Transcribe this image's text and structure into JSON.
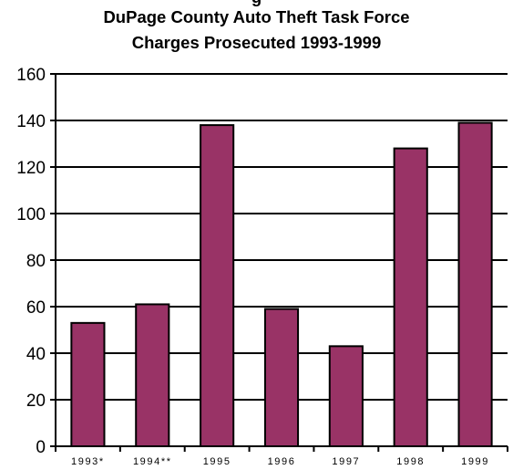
{
  "chart_data": {
    "type": "bar",
    "title_lines": [
      "g",
      "DuPage County Auto Theft Task Force",
      "Charges Prosecuted 1993-1999"
    ],
    "categories": [
      "1993*",
      "1994**",
      "1995",
      "1996",
      "1997",
      "1998",
      "1999"
    ],
    "values": [
      53,
      61,
      138,
      59,
      43,
      128,
      139
    ],
    "xlabel": "",
    "ylabel": "",
    "ylim": [
      0,
      160
    ],
    "yticks": [
      "0",
      "20",
      "40",
      "60",
      "80",
      "100",
      "120",
      "140",
      "160"
    ],
    "grid": true,
    "legend": "none",
    "colors": {
      "bar": "#993366",
      "bar_outline": "#000000",
      "gridline": "#000000",
      "axis": "#000000",
      "background": "#ffffff"
    }
  }
}
